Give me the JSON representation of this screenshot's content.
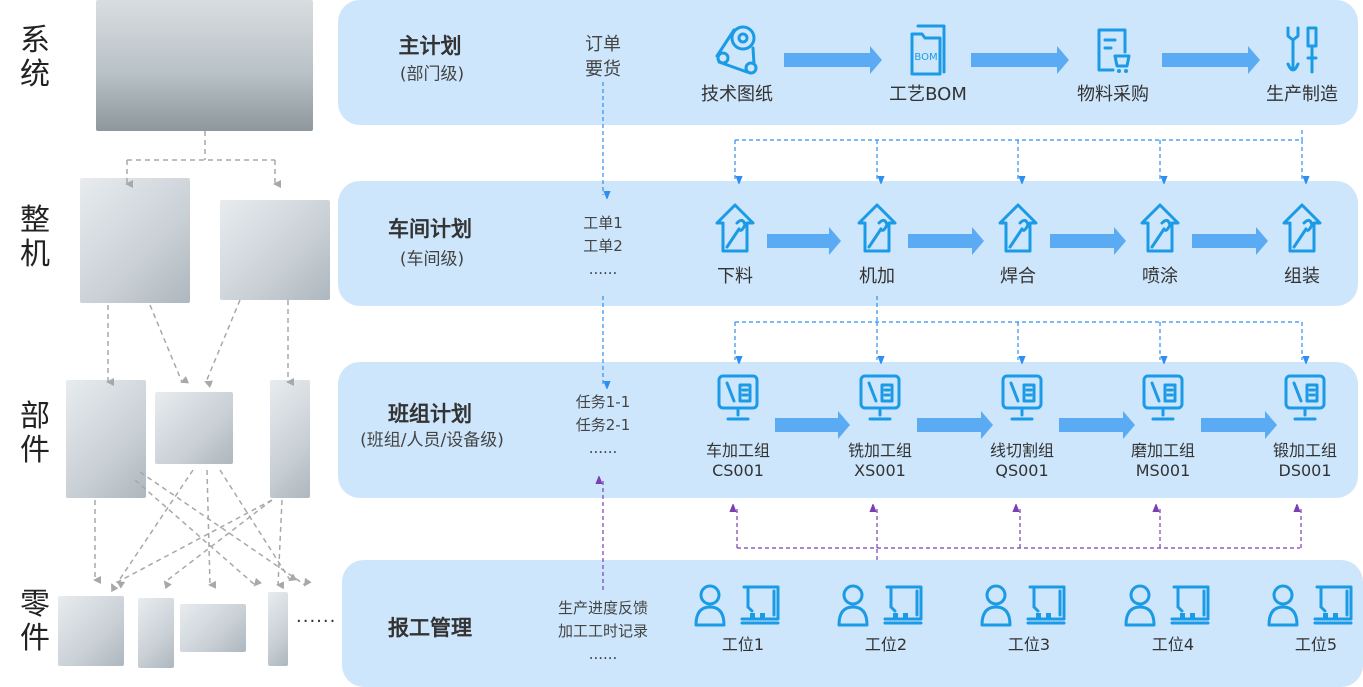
{
  "side_labels": [
    "系统",
    "整机",
    "部件",
    "零件"
  ],
  "parts_more": "......",
  "rows": [
    {
      "title": "主计划",
      "subtitle": "(部门级)",
      "notes": [
        "订单",
        "要货"
      ],
      "steps": [
        {
          "label": [
            "技术图纸"
          ],
          "icon": "belt-drive-icon"
        },
        {
          "label": [
            "工艺BOM"
          ],
          "icon": "bom-folder-icon",
          "icon_text": "BOM"
        },
        {
          "label": [
            "物料采购"
          ],
          "icon": "purchase-cart-icon"
        },
        {
          "label": [
            "生产制造"
          ],
          "icon": "wrench-screwdriver-icon"
        }
      ]
    },
    {
      "title": "车间计划",
      "subtitle": "(车间级)",
      "notes": [
        "工单1",
        "工单2",
        "......"
      ],
      "steps": [
        {
          "label": [
            "下料"
          ],
          "icon": "house-wrench-icon"
        },
        {
          "label": [
            "机加"
          ],
          "icon": "house-wrench-icon"
        },
        {
          "label": [
            "焊合"
          ],
          "icon": "house-wrench-icon"
        },
        {
          "label": [
            "喷涂"
          ],
          "icon": "house-wrench-icon"
        },
        {
          "label": [
            "组装"
          ],
          "icon": "house-wrench-icon"
        }
      ]
    },
    {
      "title": "班组计划",
      "subtitle": "(班组/人员/设备级)",
      "notes": [
        "任务1-1",
        "任务2-1",
        "......"
      ],
      "steps": [
        {
          "label": [
            "车加工组",
            "CS001"
          ],
          "icon": "monitor-tools-icon"
        },
        {
          "label": [
            "铣加工组",
            "XS001"
          ],
          "icon": "monitor-tools-icon"
        },
        {
          "label": [
            "线切割组",
            "QS001"
          ],
          "icon": "monitor-tools-icon"
        },
        {
          "label": [
            "磨加工组",
            "MS001"
          ],
          "icon": "monitor-tools-icon"
        },
        {
          "label": [
            "锻加工组",
            "DS001"
          ],
          "icon": "monitor-tools-icon"
        }
      ]
    },
    {
      "title": "报工管理",
      "subtitle": "",
      "notes": [
        "生产进度反馈",
        "加工工时记录",
        "......"
      ],
      "steps": [
        {
          "label": [
            "工位1"
          ],
          "icon": "worker-machine-icon"
        },
        {
          "label": [
            "工位2"
          ],
          "icon": "worker-machine-icon"
        },
        {
          "label": [
            "工位3"
          ],
          "icon": "worker-machine-icon"
        },
        {
          "label": [
            "工位4"
          ],
          "icon": "worker-machine-icon"
        },
        {
          "label": [
            "工位5"
          ],
          "icon": "worker-machine-icon"
        }
      ]
    }
  ],
  "colors": {
    "panel": "#cde6fb",
    "flow_arrow": "#5aabf3",
    "icon": "#1b9ae6",
    "plan_link": "#2f8ff0",
    "feedback_link": "#7a3fb0",
    "hierarchy_link": "#a8a8a8"
  }
}
